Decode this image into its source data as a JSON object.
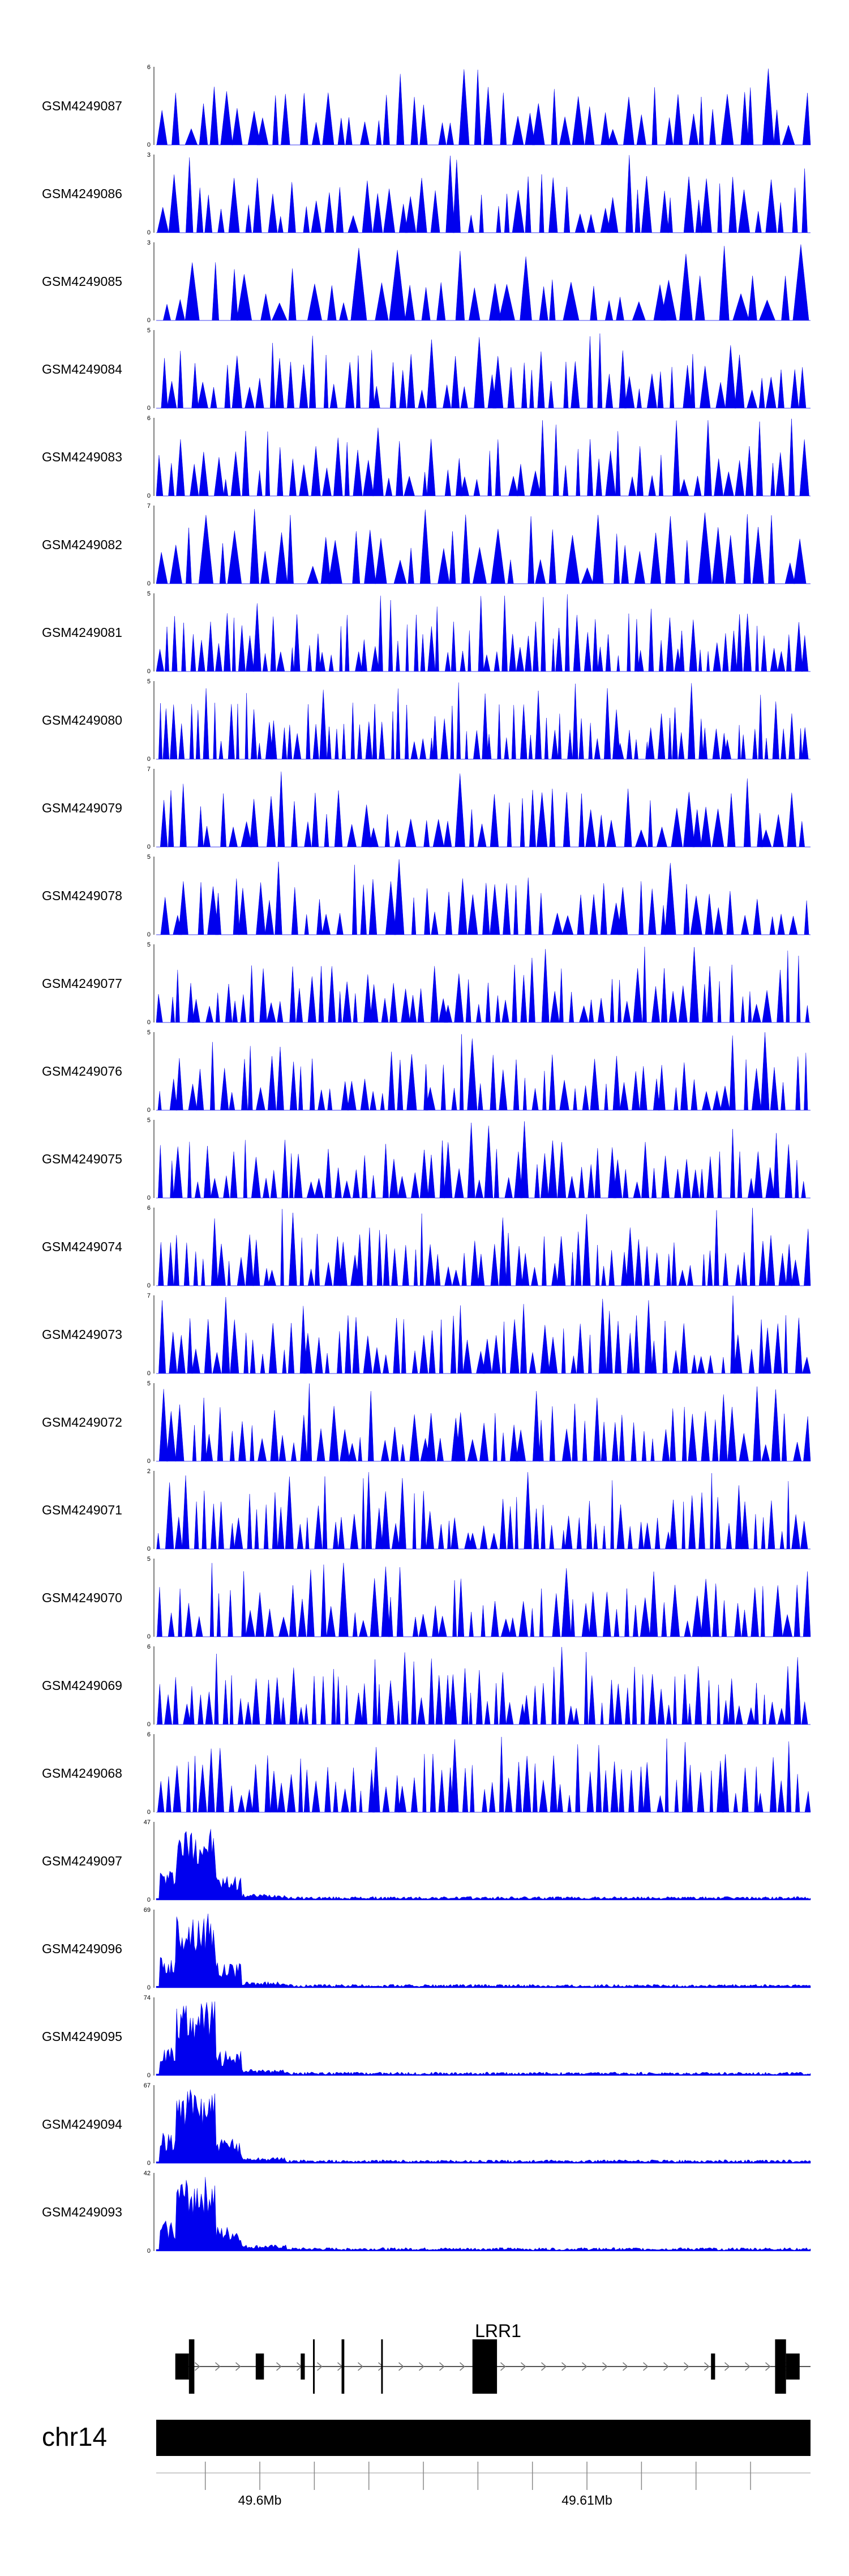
{
  "chart_data": {
    "type": "area",
    "genome": {
      "chromosome": "chr14",
      "region_start": 49596200,
      "region_end": 49620200,
      "axis_ticks": [
        {
          "pos": 49598000,
          "label": ""
        },
        {
          "pos": 49600000,
          "label": "49.6Mb"
        },
        {
          "pos": 49602000,
          "label": ""
        },
        {
          "pos": 49604000,
          "label": ""
        },
        {
          "pos": 49606000,
          "label": ""
        },
        {
          "pos": 49608000,
          "label": ""
        },
        {
          "pos": 49610000,
          "label": ""
        },
        {
          "pos": 49612000,
          "label": "49.61Mb"
        },
        {
          "pos": 49614000,
          "label": ""
        },
        {
          "pos": 49616000,
          "label": ""
        },
        {
          "pos": 49618000,
          "label": ""
        }
      ]
    },
    "gene": {
      "name": "LRR1",
      "start": 49597000,
      "end": 49620200,
      "exons": [
        {
          "start": 49596900,
          "end": 49597400,
          "tall": false
        },
        {
          "start": 49597400,
          "end": 49597600,
          "tall": true
        },
        {
          "start": 49599850,
          "end": 49600150,
          "tall": false
        },
        {
          "start": 49601500,
          "end": 49601650,
          "tall": false
        },
        {
          "start": 49601950,
          "end": 49602000,
          "tall": true
        },
        {
          "start": 49603000,
          "end": 49603100,
          "tall": true
        },
        {
          "start": 49604450,
          "end": 49604500,
          "tall": true
        },
        {
          "start": 49607800,
          "end": 49608700,
          "tall": true
        },
        {
          "start": 49616550,
          "end": 49616700,
          "tall": false
        },
        {
          "start": 49618900,
          "end": 49619300,
          "tall": true
        },
        {
          "start": 49619300,
          "end": 49619800,
          "tall": false
        }
      ]
    },
    "tracks": [
      {
        "name": "GSM4249087",
        "ymax": 6,
        "ylabel": "6",
        "kind": "sparse",
        "density": 52,
        "seed": 87
      },
      {
        "name": "GSM4249086",
        "ymax": 3,
        "ylabel": "3",
        "kind": "sparse",
        "density": 55,
        "seed": 86
      },
      {
        "name": "GSM4249085",
        "ymax": 3,
        "ylabel": "3",
        "kind": "sparse",
        "density": 40,
        "seed": 85
      },
      {
        "name": "GSM4249084",
        "ymax": 5,
        "ylabel": "5",
        "kind": "sparse",
        "density": 60,
        "seed": 84
      },
      {
        "name": "GSM4249083",
        "ymax": 6,
        "ylabel": "6",
        "kind": "sparse",
        "density": 60,
        "seed": 83
      },
      {
        "name": "GSM4249082",
        "ymax": 7,
        "ylabel": "7",
        "kind": "sparse",
        "density": 45,
        "seed": 82
      },
      {
        "name": "GSM4249081",
        "ymax": 5,
        "ylabel": "5",
        "kind": "sparse",
        "density": 80,
        "seed": 81
      },
      {
        "name": "GSM4249080",
        "ymax": 5,
        "ylabel": "5",
        "kind": "sparse",
        "density": 85,
        "seed": 80
      },
      {
        "name": "GSM4249079",
        "ymax": 7,
        "ylabel": "7",
        "kind": "sparse",
        "density": 55,
        "seed": 79
      },
      {
        "name": "GSM4249078",
        "ymax": 5,
        "ylabel": "5",
        "kind": "sparse",
        "density": 55,
        "seed": 78
      },
      {
        "name": "GSM4249077",
        "ymax": 5,
        "ylabel": "5",
        "kind": "sparse",
        "density": 70,
        "seed": 77
      },
      {
        "name": "GSM4249076",
        "ymax": 5,
        "ylabel": "5",
        "kind": "sparse",
        "density": 65,
        "seed": 76
      },
      {
        "name": "GSM4249075",
        "ymax": 5,
        "ylabel": "5",
        "kind": "sparse",
        "density": 70,
        "seed": 75
      },
      {
        "name": "GSM4249074",
        "ymax": 6,
        "ylabel": "6",
        "kind": "sparse",
        "density": 75,
        "seed": 74
      },
      {
        "name": "GSM4249073",
        "ymax": 7,
        "ylabel": "7",
        "kind": "sparse",
        "density": 70,
        "seed": 73
      },
      {
        "name": "GSM4249072",
        "ymax": 5,
        "ylabel": "5",
        "kind": "sparse",
        "density": 65,
        "seed": 72
      },
      {
        "name": "GSM4249071",
        "ymax": 2,
        "ylabel": "2",
        "kind": "sparse",
        "density": 75,
        "seed": 71
      },
      {
        "name": "GSM4249070",
        "ymax": 5,
        "ylabel": "5",
        "kind": "sparse",
        "density": 65,
        "seed": 70
      },
      {
        "name": "GSM4249069",
        "ymax": 6,
        "ylabel": "6",
        "kind": "sparse",
        "density": 80,
        "seed": 69
      },
      {
        "name": "GSM4249068",
        "ymax": 6,
        "ylabel": "6",
        "kind": "sparse",
        "density": 75,
        "seed": 68
      },
      {
        "name": "GSM4249097",
        "ymax": 47,
        "ylabel": "47",
        "kind": "dense",
        "seed": 97
      },
      {
        "name": "GSM4249096",
        "ymax": 69,
        "ylabel": "69",
        "kind": "dense",
        "seed": 96
      },
      {
        "name": "GSM4249095",
        "ymax": 74,
        "ylabel": "74",
        "kind": "dense",
        "seed": 95
      },
      {
        "name": "GSM4249094",
        "ymax": 67,
        "ylabel": "67",
        "kind": "dense",
        "seed": 94
      },
      {
        "name": "GSM4249093",
        "ymax": 42,
        "ylabel": "42",
        "kind": "dense",
        "seed": 93
      }
    ],
    "ymin_label": "0",
    "fill_color": "#0000ee"
  }
}
